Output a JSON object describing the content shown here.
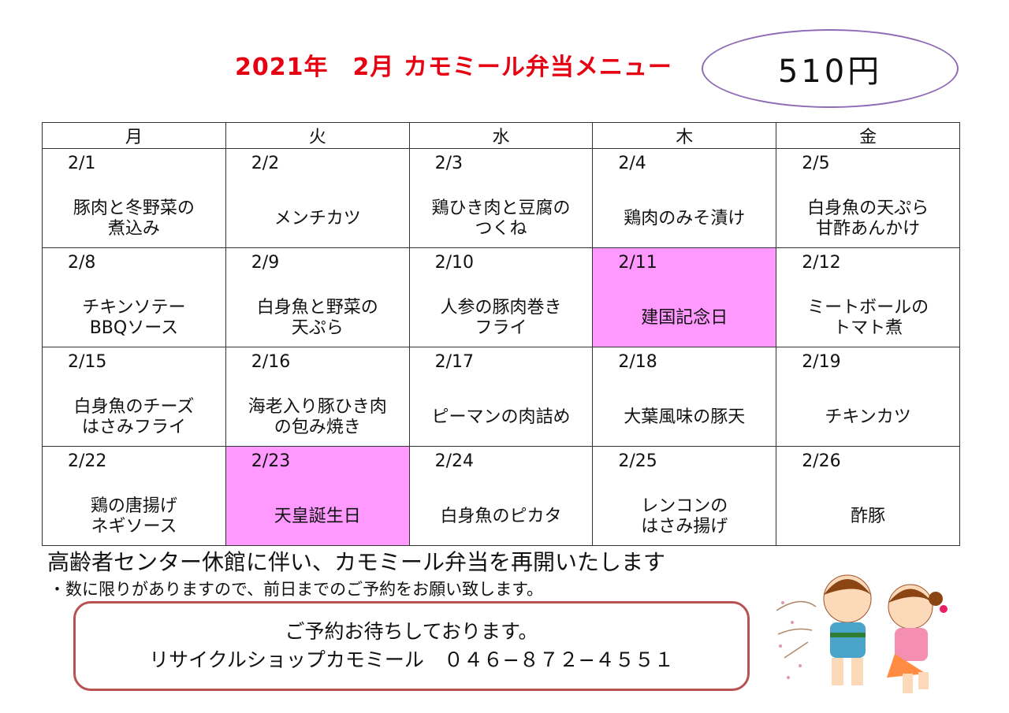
{
  "header": {
    "title": "2021年　2月 カモミール弁当メニュー",
    "price": "510円"
  },
  "colors": {
    "title": "#e60012",
    "holiday": "#ff99ff",
    "oval": "#8e6bb5",
    "contact_border": "#b85252"
  },
  "weekdays": [
    "月",
    "火",
    "水",
    "木",
    "金"
  ],
  "weeks": [
    [
      {
        "date": "2/1",
        "dish": "豚肉と冬野菜の\n煮込み"
      },
      {
        "date": "2/2",
        "dish": "メンチカツ"
      },
      {
        "date": "2/3",
        "dish": "鶏ひき肉と豆腐の\nつくね"
      },
      {
        "date": "2/4",
        "dish": "鶏肉のみそ漬け"
      },
      {
        "date": "2/5",
        "dish": "白身魚の天ぷら\n甘酢あんかけ"
      }
    ],
    [
      {
        "date": "2/8",
        "dish": "チキンソテー\nBBQソース"
      },
      {
        "date": "2/9",
        "dish": "白身魚と野菜の\n天ぷら"
      },
      {
        "date": "2/10",
        "dish": "人参の豚肉巻き\nフライ"
      },
      {
        "date": "2/11",
        "dish": "建国記念日",
        "holiday": true
      },
      {
        "date": "2/12",
        "dish": "ミートボールの\nトマト煮"
      }
    ],
    [
      {
        "date": "2/15",
        "dish": "白身魚のチーズ\nはさみフライ"
      },
      {
        "date": "2/16",
        "dish": "海老入り豚ひき肉\nの包み焼き"
      },
      {
        "date": "2/17",
        "dish": "ピーマンの肉詰め"
      },
      {
        "date": "2/18",
        "dish": "大葉風味の豚天"
      },
      {
        "date": "2/19",
        "dish": "チキンカツ"
      }
    ],
    [
      {
        "date": "2/22",
        "dish": "鶏の唐揚げ\nネギソース"
      },
      {
        "date": "2/23",
        "dish": "天皇誕生日",
        "holiday": true
      },
      {
        "date": "2/24",
        "dish": "白身魚のピカタ"
      },
      {
        "date": "2/25",
        "dish": "レンコンの\nはさみ揚げ"
      },
      {
        "date": "2/26",
        "dish": "酢豚"
      }
    ]
  ],
  "notice": "高齢者センター休館に伴い、カモミール弁当を再開いたします",
  "note": "・数に限りがありますので、前日までのご予約をお願い致します。",
  "contact": {
    "line1": "ご予約お待ちしております。",
    "line2": "リサイクルショップカモミール　０４６−８７２−４５５１"
  }
}
